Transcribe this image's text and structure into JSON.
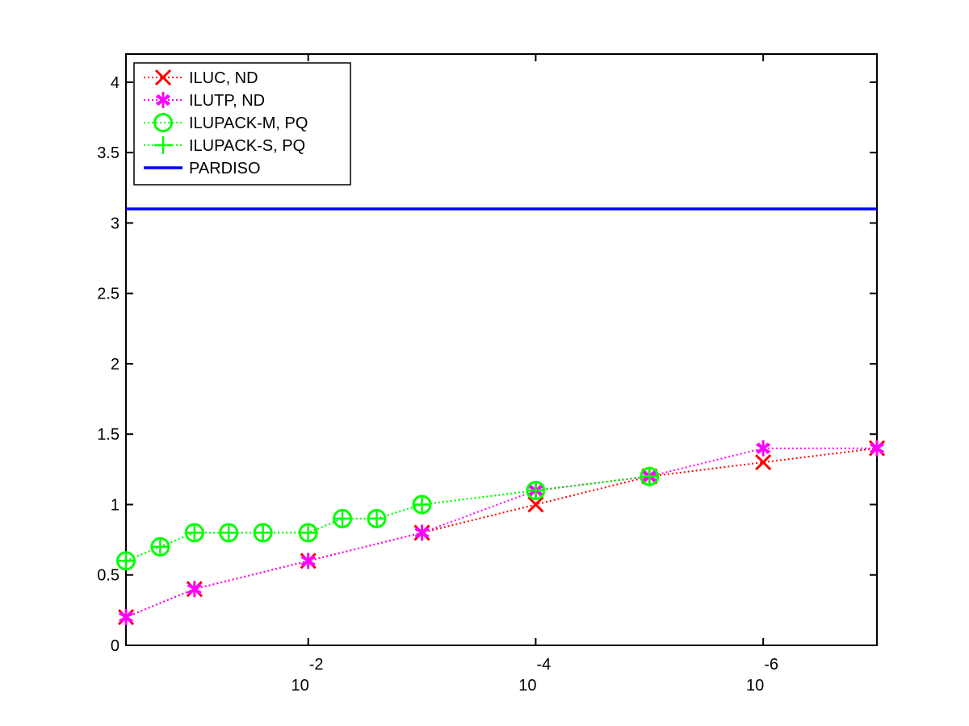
{
  "chart_data": {
    "type": "line",
    "title": "",
    "xlabel": "",
    "ylabel": "",
    "x_scale": "log",
    "x_reversed": true,
    "xlim": [
      0.4,
      1e-07
    ],
    "ylim": [
      0,
      4.2
    ],
    "grid": false,
    "legend_position": "top-left",
    "x_ticks": [
      {
        "value": 0.01,
        "base": "10",
        "exponent": "-2"
      },
      {
        "value": 0.0001,
        "base": "10",
        "exponent": "-4"
      },
      {
        "value": 1e-06,
        "base": "10",
        "exponent": "-6"
      }
    ],
    "y_ticks": [
      {
        "value": 0,
        "label": "0"
      },
      {
        "value": 0.5,
        "label": "0.5"
      },
      {
        "value": 1,
        "label": "1"
      },
      {
        "value": 1.5,
        "label": "1.5"
      },
      {
        "value": 2,
        "label": "2"
      },
      {
        "value": 2.5,
        "label": "2.5"
      },
      {
        "value": 3,
        "label": "3"
      },
      {
        "value": 3.5,
        "label": "3.5"
      },
      {
        "value": 4,
        "label": "4"
      }
    ],
    "series": [
      {
        "name": "ILUC, ND",
        "color": "#ff0000",
        "marker": "x",
        "line_style": "dotted",
        "points": [
          [
            0.4,
            0.2
          ],
          [
            0.1,
            0.4
          ],
          [
            0.01,
            0.6
          ],
          [
            0.001,
            0.8
          ],
          [
            0.0001,
            1.0
          ],
          [
            1e-05,
            1.2
          ],
          [
            1e-06,
            1.3
          ],
          [
            1e-07,
            1.4
          ]
        ]
      },
      {
        "name": "ILUTP, ND",
        "color": "#ff00ff",
        "marker": "star",
        "line_style": "dotted",
        "points": [
          [
            0.4,
            0.2
          ],
          [
            0.1,
            0.4
          ],
          [
            0.01,
            0.6
          ],
          [
            0.001,
            0.8
          ],
          [
            0.0001,
            1.1
          ],
          [
            1e-05,
            1.2
          ],
          [
            1e-06,
            1.4
          ],
          [
            1e-07,
            1.4
          ]
        ]
      },
      {
        "name": "ILUPACK-M, PQ",
        "color": "#00ff00",
        "marker": "circle",
        "line_style": "dotted",
        "points": [
          [
            0.4,
            0.6
          ],
          [
            0.2,
            0.7
          ],
          [
            0.1,
            0.8
          ],
          [
            0.05,
            0.8
          ],
          [
            0.025,
            0.8
          ],
          [
            0.01,
            0.8
          ],
          [
            0.005,
            0.9
          ],
          [
            0.0025,
            0.9
          ],
          [
            0.001,
            1.0
          ],
          [
            0.0001,
            1.1
          ],
          [
            1e-05,
            1.2
          ]
        ]
      },
      {
        "name": "ILUPACK-S, PQ",
        "color": "#00ff00",
        "marker": "plus",
        "line_style": "dotted",
        "points": [
          [
            0.4,
            0.6
          ],
          [
            0.2,
            0.7
          ],
          [
            0.1,
            0.8
          ],
          [
            0.05,
            0.8
          ],
          [
            0.025,
            0.8
          ],
          [
            0.01,
            0.8
          ],
          [
            0.005,
            0.9
          ],
          [
            0.0025,
            0.9
          ],
          [
            0.001,
            1.0
          ],
          [
            0.0001,
            1.1
          ],
          [
            1e-05,
            1.2
          ]
        ]
      },
      {
        "name": "PARDISO",
        "color": "#0000ff",
        "marker": "none",
        "line_style": "solid",
        "points": [
          [
            0.4,
            3.1
          ],
          [
            1e-07,
            3.1
          ]
        ]
      }
    ]
  }
}
